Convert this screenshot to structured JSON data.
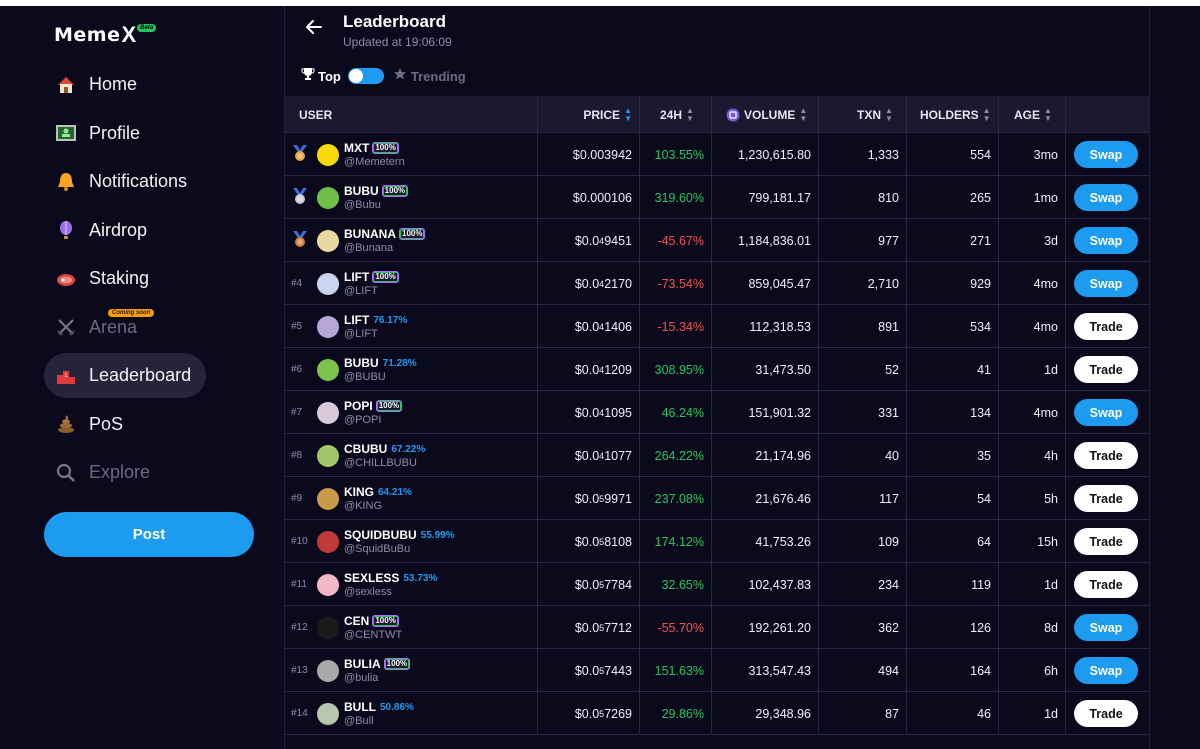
{
  "app": {
    "logo": "Meme",
    "logo_x": "X",
    "beta": "Beta"
  },
  "sidebar": {
    "items": [
      {
        "label": "Home",
        "icon": "house-icon"
      },
      {
        "label": "Profile",
        "icon": "profile-card-icon"
      },
      {
        "label": "Notifications",
        "icon": "bell-icon"
      },
      {
        "label": "Airdrop",
        "icon": "balloon-icon"
      },
      {
        "label": "Staking",
        "icon": "steak-icon"
      },
      {
        "label": "Arena",
        "icon": "crossed-swords-icon",
        "badge": "Coming soon",
        "disabled": true
      },
      {
        "label": "Leaderboard",
        "icon": "podium-icon",
        "active": true
      },
      {
        "label": "PoS",
        "icon": "poop-icon"
      },
      {
        "label": "Explore",
        "icon": "magnifier-icon",
        "disabled": true
      }
    ],
    "post_label": "Post"
  },
  "header": {
    "title": "Leaderboard",
    "updated": "Updated at 19:06:09",
    "toggle_top": "Top",
    "toggle_trending": "Trending"
  },
  "table": {
    "columns": {
      "user": "USER",
      "price": "PRICE",
      "h24": "24H",
      "volume": "VOLUME",
      "txn": "TXN",
      "holders": "HOLDERS",
      "age": "AGE"
    },
    "rows": [
      {
        "rank": "",
        "medal": "gold",
        "name": "MXT",
        "badge": "100%",
        "pct": "",
        "handle": "@Memetern",
        "price_prefix": "$0.003942",
        "price_sub": "",
        "price_rest": "",
        "change": "103.55%",
        "dir": "pos",
        "volume": "1,230,615.80",
        "txn": "1,333",
        "holders": "554",
        "age": "3mo",
        "action": "Swap",
        "avatar_color": "#f5d90a"
      },
      {
        "rank": "",
        "medal": "silver",
        "name": "BUBU",
        "badge": "100%",
        "pct": "",
        "handle": "@Bubu",
        "price_prefix": "$0.000106",
        "price_sub": "",
        "price_rest": "",
        "change": "319.60%",
        "dir": "pos",
        "volume": "799,181.17",
        "txn": "810",
        "holders": "265",
        "age": "1mo",
        "action": "Swap",
        "avatar_color": "#6fbf4a"
      },
      {
        "rank": "",
        "medal": "bronze",
        "name": "BUNANA",
        "badge": "100%",
        "pct": "",
        "handle": "@Bunana",
        "price_prefix": "$0.0",
        "price_sub": "4",
        "price_rest": "9451",
        "change": "-45.67%",
        "dir": "neg",
        "volume": "1,184,836.01",
        "txn": "977",
        "holders": "271",
        "age": "3d",
        "action": "Swap",
        "avatar_color": "#e9d6a0"
      },
      {
        "rank": "#4",
        "medal": "",
        "name": "LIFT",
        "badge": "100%",
        "pct": "",
        "handle": "@LIFT",
        "price_prefix": "$0.0",
        "price_sub": "4",
        "price_rest": "2170",
        "change": "-73.54%",
        "dir": "neg",
        "volume": "859,045.47",
        "txn": "2,710",
        "holders": "929",
        "age": "4mo",
        "action": "Swap",
        "avatar_color": "#c9d4f0"
      },
      {
        "rank": "#5",
        "medal": "",
        "name": "LIFT",
        "badge": "",
        "pct": "76.17%",
        "handle": "@LIFT",
        "price_prefix": "$0.0",
        "price_sub": "4",
        "price_rest": "1406",
        "change": "-15.34%",
        "dir": "neg",
        "volume": "112,318.53",
        "txn": "891",
        "holders": "534",
        "age": "4mo",
        "action": "Trade",
        "avatar_color": "#b7a6d8"
      },
      {
        "rank": "#6",
        "medal": "",
        "name": "BUBU",
        "badge": "",
        "pct": "71.28%",
        "handle": "@BUBU",
        "price_prefix": "$0.0",
        "price_sub": "4",
        "price_rest": "1209",
        "change": "308.95%",
        "dir": "pos",
        "volume": "31,473.50",
        "txn": "52",
        "holders": "41",
        "age": "1d",
        "action": "Trade",
        "avatar_color": "#7bc24f"
      },
      {
        "rank": "#7",
        "medal": "",
        "name": "POPI",
        "badge": "100%",
        "pct": "",
        "handle": "@POPI",
        "price_prefix": "$0.0",
        "price_sub": "4",
        "price_rest": "1095",
        "change": "46.24%",
        "dir": "pos",
        "volume": "151,901.32",
        "txn": "331",
        "holders": "134",
        "age": "4mo",
        "action": "Swap",
        "avatar_color": "#d9c8d8"
      },
      {
        "rank": "#8",
        "medal": "",
        "name": "CBUBU",
        "badge": "",
        "pct": "67.22%",
        "handle": "@CHILLBUBU",
        "price_prefix": "$0.0",
        "price_sub": "4",
        "price_rest": "1077",
        "change": "264.22%",
        "dir": "pos",
        "volume": "21,174.96",
        "txn": "40",
        "holders": "35",
        "age": "4h",
        "action": "Trade",
        "avatar_color": "#9fc46a"
      },
      {
        "rank": "#9",
        "medal": "",
        "name": "KING",
        "badge": "",
        "pct": "64.21%",
        "handle": "@KING",
        "price_prefix": "$0.0",
        "price_sub": "5",
        "price_rest": "9971",
        "change": "237.08%",
        "dir": "pos",
        "volume": "21,676.46",
        "txn": "117",
        "holders": "54",
        "age": "5h",
        "action": "Trade",
        "avatar_color": "#c99a4a"
      },
      {
        "rank": "#10",
        "medal": "",
        "name": "SQUIDBUBU",
        "badge": "",
        "pct": "55.99%",
        "handle": "@SquidBuBu",
        "price_prefix": "$0.0",
        "price_sub": "5",
        "price_rest": "8108",
        "change": "174.12%",
        "dir": "pos",
        "volume": "41,753.26",
        "txn": "109",
        "holders": "64",
        "age": "15h",
        "action": "Trade",
        "avatar_color": "#c2393a"
      },
      {
        "rank": "#11",
        "medal": "",
        "name": "SEXLESS",
        "badge": "",
        "pct": "53.73%",
        "handle": "@sexless",
        "price_prefix": "$0.0",
        "price_sub": "5",
        "price_rest": "7784",
        "change": "32.65%",
        "dir": "pos",
        "volume": "102,437.83",
        "txn": "234",
        "holders": "119",
        "age": "1d",
        "action": "Trade",
        "avatar_color": "#f3b9c9"
      },
      {
        "rank": "#12",
        "medal": "",
        "name": "CEN",
        "badge": "100%",
        "pct": "",
        "handle": "@CENTWT",
        "price_prefix": "$0.0",
        "price_sub": "5",
        "price_rest": "7712",
        "change": "-55.70%",
        "dir": "neg",
        "volume": "192,261.20",
        "txn": "362",
        "holders": "126",
        "age": "8d",
        "action": "Swap",
        "avatar_color": "#1a1a1a"
      },
      {
        "rank": "#13",
        "medal": "",
        "name": "BULIA",
        "badge": "100%",
        "pct": "",
        "handle": "@bulia",
        "price_prefix": "$0.0",
        "price_sub": "5",
        "price_rest": "7443",
        "change": "151.63%",
        "dir": "pos",
        "volume": "313,547.43",
        "txn": "494",
        "holders": "164",
        "age": "6h",
        "action": "Swap",
        "avatar_color": "#a8a8a8"
      },
      {
        "rank": "#14",
        "medal": "",
        "name": "BULL",
        "badge": "",
        "pct": "50.86%",
        "handle": "@Bull",
        "price_prefix": "$0.0",
        "price_sub": "5",
        "price_rest": "7269",
        "change": "29.86%",
        "dir": "pos",
        "volume": "29,348.96",
        "txn": "87",
        "holders": "46",
        "age": "1d",
        "action": "Trade",
        "avatar_color": "#b8c8b0"
      }
    ]
  },
  "colors": {
    "accent": "#1d9bf0",
    "positive": "#22c55e",
    "negative": "#f05252",
    "background": "#0b0a1d"
  }
}
